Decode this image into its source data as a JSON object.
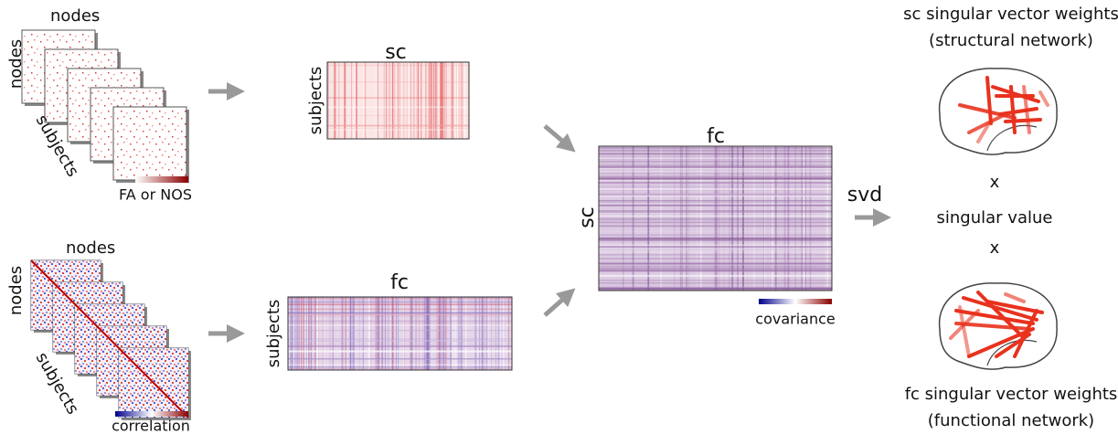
{
  "sc_stack": {
    "top_label": "nodes",
    "side_label": "nodes",
    "bottom_label": "subjects",
    "colorbar_label": "FA or NOS"
  },
  "fc_stack": {
    "top_label": "nodes",
    "side_label": "nodes",
    "bottom_label": "subjects",
    "colorbar_label": "correlation"
  },
  "sc_matrix": {
    "title": "sc",
    "side_label": "subjects"
  },
  "fc_matrix": {
    "title": "fc",
    "side_label": "subjects"
  },
  "cov_matrix": {
    "title": "fc",
    "side_label": "sc",
    "colorbar_label": "covariance"
  },
  "svd": {
    "label": "svd"
  },
  "results": {
    "sc_title": "sc singular vector weights",
    "sc_subtitle": "(structural network)",
    "times_1": "x",
    "singular_value": "singular value",
    "times_2": "x",
    "fc_title": "fc singular vector weights",
    "fc_subtitle": "(functional network)"
  }
}
